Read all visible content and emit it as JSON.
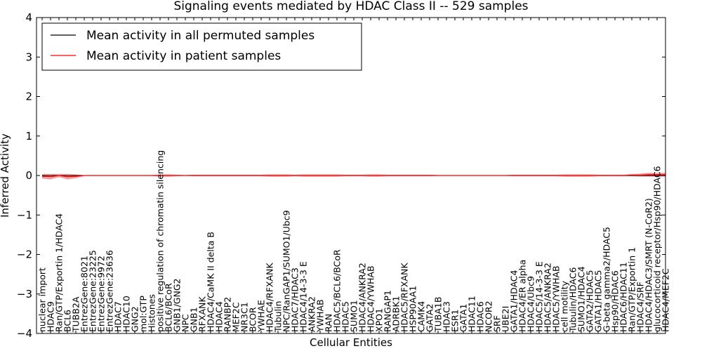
{
  "chart_data": {
    "type": "line",
    "title": "Signaling events mediated by HDAC Class II -- 529 samples",
    "xlabel": "Cellular Entities",
    "ylabel": "Inferred Activity",
    "ylim": [
      -4,
      4
    ],
    "yticks": [
      -4,
      -3,
      -2,
      -1,
      0,
      1,
      2,
      3,
      4
    ],
    "ytick_labels": [
      "−4",
      "−3",
      "−2",
      "−1",
      "0",
      "1",
      "2",
      "3",
      "4"
    ],
    "grid": false,
    "legend_position": "top-left",
    "categories": [
      "nuclear import",
      "HDAC9",
      "Ran/GTP/Exportin 1/HDAC4",
      "BCL6",
      "TUBB2A",
      "EntrezGene:8021",
      "EntrezGene:23225",
      "EntrezGene:9972",
      "EntrezGene:23636",
      "HDAC7",
      "HDAC10",
      "GNG2",
      "mol:GTP",
      "Histones",
      "positive regulation of chromatin silencing",
      "BCL6/BCoR",
      "GNB1/GNG2",
      "NPC",
      "GNB1",
      "RFXANK",
      "HDAC4/CaMK II delta B",
      "HDAC4",
      "RANBP2",
      "MEF2C",
      "NR3C1",
      "BCOR",
      "YWHAE",
      "HDAC4/RFXANK",
      "Tubulin",
      "NPC/RanGAP1/SUMO1/Ubc9",
      "HDAC7/HDAC3",
      "HDAC4/14-3-3 E",
      "ANKRA2",
      "YWHAB",
      "RAN",
      "HDAC5/BCL6/BCoR",
      "HDAC5",
      "SUMO1",
      "HDAC4/ANKRA2",
      "HDAC4/YWHAB",
      "XPO1",
      "RANGAP1",
      "ADRBK1",
      "HDAC5/RFXANK",
      "HSP90AA1",
      "CAMK4",
      "GATA2",
      "TUBA1B",
      "HDAC3",
      "ESR1",
      "GATA1",
      "HDAC11",
      "HDAC6",
      "NCOR2",
      "SRF",
      "UBE2I",
      "GATA1/HDAC4",
      "HDAC4/ER alpha",
      "HDAC4/Ubc9",
      "HDAC5/14-3-3 E",
      "HDAC5/ANKRA2",
      "HDAC5/YWHAB",
      "cell motility",
      "Tubulin/HDAC6",
      "SUMO1/HDAC4",
      "GATA2/HDAC5",
      "GATA1/HDAC5",
      "G-beta gamma2/HDAC5",
      "Hsp90/HDAC6",
      "HDAC6/HDAC11",
      "Ran/GTP/Exportin 1",
      "HDAC4/SRF",
      "HDAC4/HDAC3/SMRT (N-CoR2)",
      "glucocorticoid receptor/Hsp90/HDAC6",
      "HDAC4/MEF2C"
    ],
    "series": [
      {
        "name": "Mean activity in all permuted samples",
        "color": "#000000",
        "values": [
          0,
          0,
          0,
          0,
          0,
          0,
          0,
          0,
          0,
          0,
          0,
          0,
          0,
          0,
          0,
          0,
          0,
          0,
          0,
          0,
          0,
          0,
          0,
          0,
          0,
          0,
          0,
          0,
          0,
          0,
          0,
          0,
          0,
          0,
          0,
          0,
          0,
          0,
          0,
          0,
          0,
          0,
          0,
          0,
          0,
          0,
          0,
          0,
          0,
          0,
          0,
          0,
          0,
          0,
          0,
          0,
          0,
          0,
          0,
          0,
          0,
          0,
          0,
          0,
          0,
          0,
          0,
          0,
          0,
          0,
          0,
          0,
          0,
          0,
          0
        ]
      },
      {
        "name": "Mean activity in patient samples",
        "color": "#ff0000",
        "band_color": "#f08080",
        "values": [
          -0.02,
          -0.03,
          0.0,
          -0.03,
          -0.02,
          0.0,
          0.0,
          0.0,
          0.0,
          0.0,
          0.0,
          0.0,
          0.0,
          0.0,
          0.0,
          0.0,
          0.0,
          0.0,
          0.0,
          0.0,
          0.0,
          0.0,
          0.0,
          0.0,
          0.0,
          0.0,
          0.0,
          0.0,
          0.0,
          0.0,
          0.0,
          0.0,
          0.0,
          0.0,
          0.0,
          0.0,
          0.0,
          0.0,
          0.0,
          0.0,
          0.0,
          0.0,
          0.0,
          0.0,
          0.0,
          0.0,
          0.0,
          0.0,
          0.0,
          0.0,
          0.0,
          0.0,
          0.0,
          0.0,
          0.0,
          0.0,
          0.0,
          0.0,
          0.0,
          0.0,
          0.0,
          0.0,
          0.0,
          0.0,
          0.0,
          0.0,
          0.0,
          0.0,
          0.0,
          0.0,
          0.01,
          0.01,
          0.02,
          0.02,
          0.02
        ],
        "spread": [
          0.06,
          0.07,
          0.04,
          0.07,
          0.05,
          0.01,
          0.01,
          0.01,
          0.01,
          0.01,
          0.01,
          0.01,
          0.01,
          0.01,
          0.03,
          0.03,
          0.02,
          0.01,
          0.02,
          0.02,
          0.02,
          0.02,
          0.02,
          0.02,
          0.02,
          0.02,
          0.02,
          0.03,
          0.03,
          0.03,
          0.02,
          0.03,
          0.03,
          0.03,
          0.03,
          0.03,
          0.02,
          0.02,
          0.02,
          0.03,
          0.03,
          0.02,
          0.02,
          0.02,
          0.02,
          0.02,
          0.02,
          0.01,
          0.01,
          0.01,
          0.01,
          0.01,
          0.01,
          0.01,
          0.01,
          0.01,
          0.02,
          0.02,
          0.02,
          0.02,
          0.02,
          0.02,
          0.03,
          0.03,
          0.03,
          0.03,
          0.02,
          0.02,
          0.02,
          0.02,
          0.03,
          0.04,
          0.05,
          0.05,
          0.05
        ]
      }
    ]
  }
}
